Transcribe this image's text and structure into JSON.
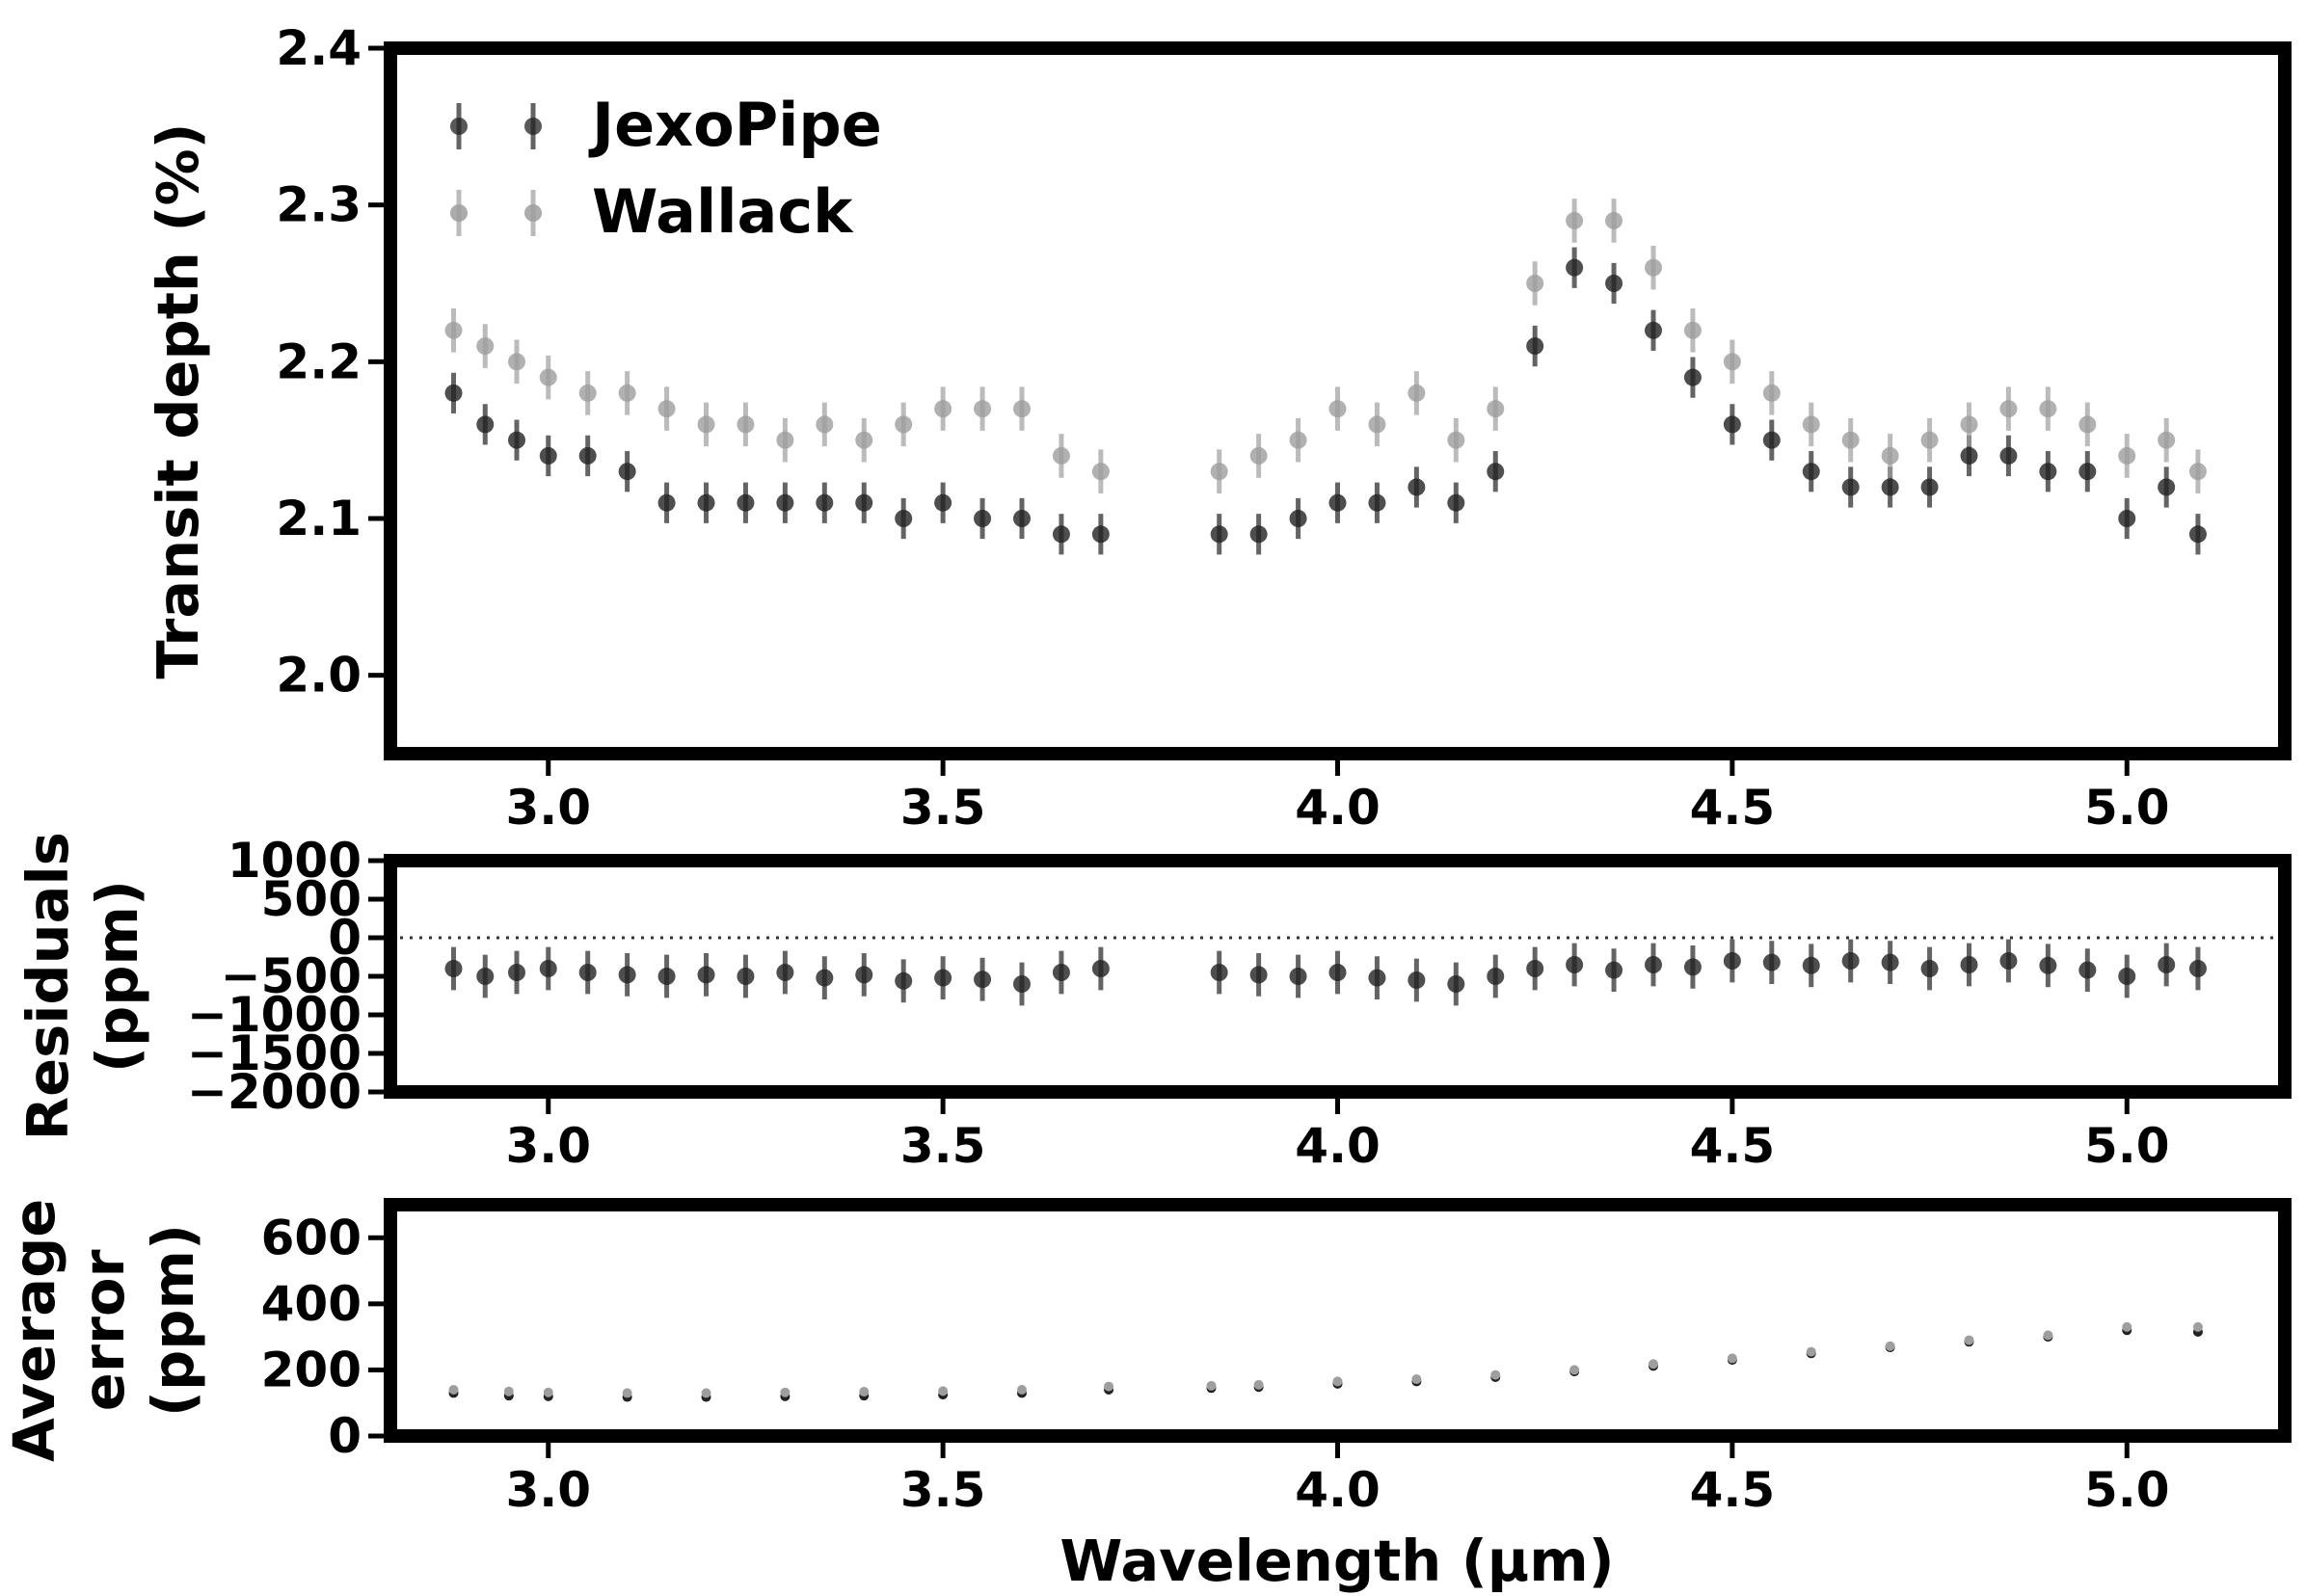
{
  "colors": {
    "jexopipe": "#222222",
    "wallack": "#9e9e9e",
    "frame": "#000000",
    "zero_line": "#333333"
  },
  "legend": [
    {
      "name": "JexoPipe",
      "color": "#222222"
    },
    {
      "name": "Wallack",
      "color": "#9e9e9e"
    }
  ],
  "chart_data": [
    {
      "type": "scatter",
      "panel": "top",
      "ylabel": "Transit depth (%)",
      "xlabel": "",
      "xlim": [
        2.8,
        5.2
      ],
      "ylim": [
        1.95,
        2.4
      ],
      "xticks": [
        "3.0",
        "3.5",
        "4.0",
        "4.5",
        "5.0"
      ],
      "yticks": [
        "2.0",
        "2.1",
        "2.2",
        "2.3",
        "2.4"
      ],
      "error_bars": true,
      "legend_position": "top-left",
      "series": [
        {
          "name": "JexoPipe",
          "x": [
            2.88,
            2.92,
            2.96,
            3.0,
            3.05,
            3.1,
            3.15,
            3.2,
            3.25,
            3.3,
            3.35,
            3.4,
            3.45,
            3.5,
            3.55,
            3.6,
            3.65,
            3.7,
            3.85,
            3.9,
            3.95,
            4.0,
            4.05,
            4.1,
            4.15,
            4.2,
            4.25,
            4.3,
            4.35,
            4.4,
            4.45,
            4.5,
            4.55,
            4.6,
            4.65,
            4.7,
            4.75,
            4.8,
            4.85,
            4.9,
            4.95,
            5.0,
            5.05,
            5.09
          ],
          "y": [
            2.18,
            2.16,
            2.15,
            2.14,
            2.14,
            2.13,
            2.11,
            2.11,
            2.11,
            2.11,
            2.11,
            2.11,
            2.1,
            2.11,
            2.1,
            2.1,
            2.09,
            2.09,
            2.09,
            2.09,
            2.1,
            2.11,
            2.11,
            2.12,
            2.11,
            2.13,
            2.21,
            2.26,
            2.25,
            2.22,
            2.19,
            2.16,
            2.15,
            2.13,
            2.12,
            2.12,
            2.12,
            2.14,
            2.14,
            2.13,
            2.13,
            2.1,
            2.12,
            2.09
          ],
          "yerr": 0.013
        },
        {
          "name": "Wallack",
          "x": [
            2.88,
            2.92,
            2.96,
            3.0,
            3.05,
            3.1,
            3.15,
            3.2,
            3.25,
            3.3,
            3.35,
            3.4,
            3.45,
            3.5,
            3.55,
            3.6,
            3.65,
            3.7,
            3.85,
            3.9,
            3.95,
            4.0,
            4.05,
            4.1,
            4.15,
            4.2,
            4.25,
            4.3,
            4.35,
            4.4,
            4.45,
            4.5,
            4.55,
            4.6,
            4.65,
            4.7,
            4.75,
            4.8,
            4.85,
            4.9,
            4.95,
            5.0,
            5.05,
            5.09
          ],
          "y": [
            2.22,
            2.21,
            2.2,
            2.19,
            2.18,
            2.18,
            2.17,
            2.16,
            2.16,
            2.15,
            2.16,
            2.15,
            2.16,
            2.17,
            2.17,
            2.17,
            2.14,
            2.13,
            2.13,
            2.14,
            2.15,
            2.17,
            2.16,
            2.18,
            2.15,
            2.17,
            2.25,
            2.29,
            2.29,
            2.26,
            2.22,
            2.2,
            2.18,
            2.16,
            2.15,
            2.14,
            2.15,
            2.16,
            2.17,
            2.17,
            2.16,
            2.14,
            2.15,
            2.13
          ],
          "yerr": 0.014
        }
      ]
    },
    {
      "type": "scatter",
      "panel": "middle",
      "ylabel": "Residuals\n(ppm)",
      "xlabel": "",
      "xlim": [
        2.8,
        5.2
      ],
      "ylim": [
        -2000,
        1000
      ],
      "xticks": [
        "3.0",
        "3.5",
        "4.0",
        "4.5",
        "5.0"
      ],
      "yticks": [
        "1000",
        "500",
        "0",
        "−500",
        "−1000",
        "−1500",
        "−2000"
      ],
      "zero_line": "dotted",
      "error_bars": true,
      "series": [
        {
          "x": [
            2.88,
            2.92,
            2.96,
            3.0,
            3.05,
            3.1,
            3.15,
            3.2,
            3.25,
            3.3,
            3.35,
            3.4,
            3.45,
            3.5,
            3.55,
            3.6,
            3.65,
            3.7,
            3.85,
            3.9,
            3.95,
            4.0,
            4.05,
            4.1,
            4.15,
            4.2,
            4.25,
            4.3,
            4.35,
            4.4,
            4.45,
            4.5,
            4.55,
            4.6,
            4.65,
            4.7,
            4.75,
            4.8,
            4.85,
            4.9,
            4.95,
            5.0,
            5.05,
            5.09
          ],
          "y": [
            -400,
            -500,
            -450,
            -400,
            -450,
            -480,
            -500,
            -480,
            -500,
            -450,
            -520,
            -480,
            -560,
            -520,
            -540,
            -600,
            -450,
            -400,
            -450,
            -480,
            -500,
            -450,
            -520,
            -550,
            -600,
            -500,
            -400,
            -350,
            -420,
            -350,
            -380,
            -300,
            -320,
            -360,
            -300,
            -320,
            -400,
            -350,
            -300,
            -360,
            -420,
            -500,
            -350,
            -400
          ],
          "yerr": 280
        }
      ]
    },
    {
      "type": "scatter",
      "panel": "bottom",
      "ylabel": "Average\nerror\n(ppm)",
      "xlabel": "Wavelength (μm)",
      "xlim": [
        2.8,
        5.2
      ],
      "ylim": [
        0,
        700
      ],
      "xticks": [
        "3.0",
        "3.5",
        "4.0",
        "4.5",
        "5.0"
      ],
      "yticks": [
        "600",
        "400",
        "200",
        "0"
      ],
      "series": [
        {
          "name": "JexoPipe",
          "x": [
            2.88,
            2.95,
            3.0,
            3.1,
            3.2,
            3.3,
            3.4,
            3.5,
            3.6,
            3.71,
            3.84,
            3.9,
            4.0,
            4.1,
            4.2,
            4.3,
            4.4,
            4.5,
            4.6,
            4.7,
            4.8,
            4.9,
            5.0,
            5.09
          ],
          "y": [
            130,
            122,
            120,
            118,
            118,
            120,
            122,
            125,
            130,
            140,
            145,
            148,
            158,
            165,
            178,
            195,
            212,
            230,
            250,
            268,
            285,
            300,
            320,
            315
          ]
        },
        {
          "name": "Wallack",
          "x": [
            2.88,
            2.95,
            3.0,
            3.1,
            3.2,
            3.3,
            3.4,
            3.5,
            3.6,
            3.71,
            3.84,
            3.9,
            4.0,
            4.1,
            4.2,
            4.3,
            4.4,
            4.5,
            4.6,
            4.7,
            4.8,
            4.9,
            5.0,
            5.09
          ],
          "y": [
            140,
            135,
            132,
            130,
            130,
            132,
            134,
            136,
            140,
            150,
            152,
            155,
            165,
            172,
            185,
            200,
            218,
            235,
            255,
            272,
            290,
            305,
            330,
            330
          ]
        }
      ]
    }
  ]
}
